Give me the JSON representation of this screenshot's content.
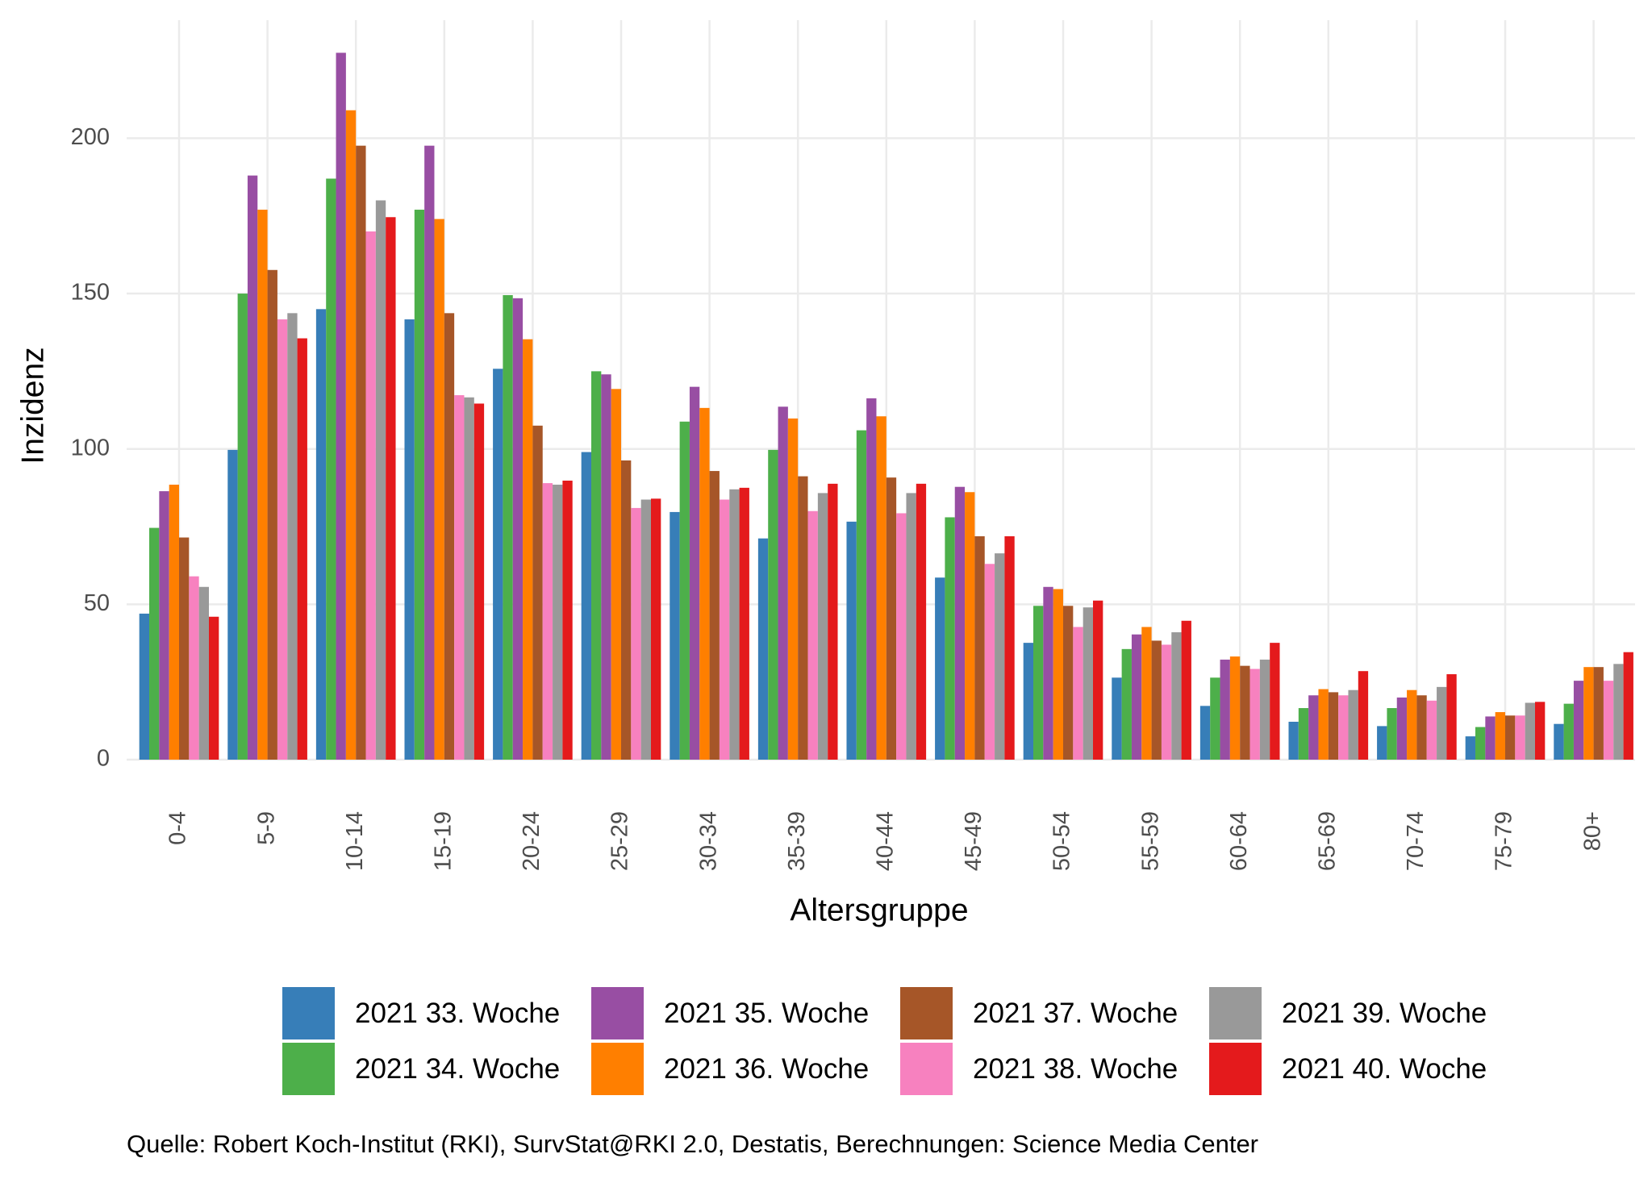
{
  "chart_data": {
    "type": "bar",
    "x_label": "Altersgruppe",
    "y_label": "Inzidenz",
    "caption": "Quelle: Robert Koch-Institut (RKI), SurvStat@RKI 2.0, Destatis, Berechnungen: Science Media Center",
    "categories": [
      "0-4",
      "5-9",
      "10-14",
      "15-19",
      "20-24",
      "25-29",
      "30-34",
      "35-39",
      "40-44",
      "45-49",
      "50-54",
      "55-59",
      "60-64",
      "65-69",
      "70-74",
      "75-79",
      "80+"
    ],
    "ylim": [
      0,
      238
    ],
    "yticks": [
      0,
      50,
      100,
      150,
      200
    ],
    "grid": true,
    "legend": "bottom",
    "series": [
      {
        "name": "2021 33. Woche",
        "color": "#377eb8",
        "values": [
          47,
          99.7,
          145,
          141.7,
          125.8,
          99,
          79.7,
          71.2,
          76.6,
          58.6,
          37.6,
          26.4,
          17.3,
          12.2,
          10.8,
          7.5,
          11.5
        ]
      },
      {
        "name": "2021 34. Woche",
        "color": "#4daf4a",
        "values": [
          74.6,
          150,
          187,
          177,
          149.5,
          125,
          108.8,
          99.7,
          106,
          78,
          49.5,
          35.6,
          26.4,
          16.6,
          16.6,
          10.5,
          18
        ]
      },
      {
        "name": "2021 35. Woche",
        "color": "#984ea3",
        "values": [
          86.4,
          188,
          227.5,
          197.6,
          148.5,
          124,
          120,
          113.6,
          116.3,
          87.8,
          55.6,
          40.3,
          32.2,
          20.7,
          20,
          13.9,
          25.4
        ]
      },
      {
        "name": "2021 36. Woche",
        "color": "#ff7f00",
        "values": [
          88.5,
          177,
          209,
          174,
          135.3,
          119.3,
          113.2,
          109.8,
          110.5,
          86.1,
          54.9,
          42.7,
          33.2,
          22.7,
          22.4,
          15.3,
          29.8
        ]
      },
      {
        "name": "2021 37. Woche",
        "color": "#a65628",
        "values": [
          71.5,
          157.6,
          197.6,
          143.7,
          107.5,
          96.3,
          92.9,
          91.2,
          90.8,
          71.9,
          49.5,
          38.3,
          30.2,
          21.7,
          20.7,
          14.2,
          29.8
        ]
      },
      {
        "name": "2021 38. Woche",
        "color": "#f781bf",
        "values": [
          59,
          141.7,
          170,
          117.3,
          89,
          81,
          83.7,
          80,
          79.3,
          63,
          42.7,
          37,
          29.2,
          20.7,
          19,
          14.2,
          25.4
        ]
      },
      {
        "name": "2021 39. Woche",
        "color": "#999999",
        "values": [
          55.6,
          143.7,
          180,
          116.6,
          88.5,
          83.7,
          87,
          85.8,
          85.8,
          66.4,
          49,
          41,
          32.2,
          22.4,
          23.4,
          18.3,
          30.8
        ]
      },
      {
        "name": "2021 40. Woche",
        "color": "#e41a1c",
        "values": [
          46,
          135.6,
          174.6,
          114.6,
          89.8,
          84,
          87.5,
          88.8,
          88.8,
          71.9,
          51.2,
          44.7,
          37.6,
          28.5,
          27.5,
          18.6,
          34.6
        ]
      }
    ]
  }
}
